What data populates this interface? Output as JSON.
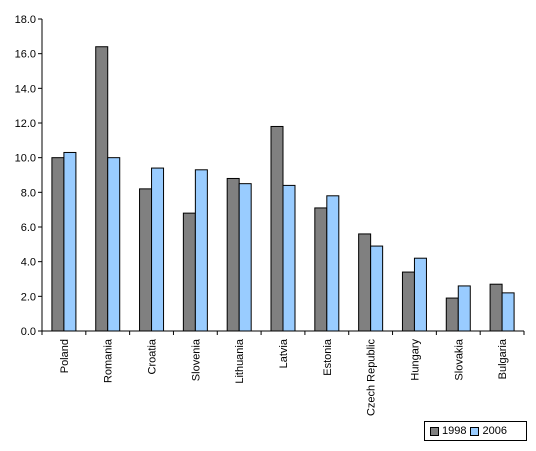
{
  "chart_data": {
    "type": "bar",
    "categories": [
      "Poland",
      "Romania",
      "Croatia",
      "Slovenia",
      "Lithuania",
      "Latvia",
      "Estonia",
      "Czech Republic",
      "Hungary",
      "Slovakia",
      "Bulgaria"
    ],
    "series": [
      {
        "name": "1998",
        "color": "#808080",
        "values": [
          10.0,
          16.4,
          8.2,
          6.8,
          8.8,
          11.8,
          7.1,
          5.6,
          3.4,
          1.9,
          2.7
        ]
      },
      {
        "name": "2006",
        "color": "#99ccff",
        "values": [
          10.3,
          10.0,
          9.4,
          9.3,
          8.5,
          8.4,
          7.8,
          4.9,
          4.2,
          2.6,
          2.2
        ]
      }
    ],
    "yticks": [
      "0.0",
      "2.0",
      "4.0",
      "6.0",
      "8.0",
      "10.0",
      "12.0",
      "14.0",
      "16.0",
      "18.0"
    ],
    "ylim": [
      0,
      18
    ],
    "grid": false,
    "legend_position": "bottom-right"
  }
}
